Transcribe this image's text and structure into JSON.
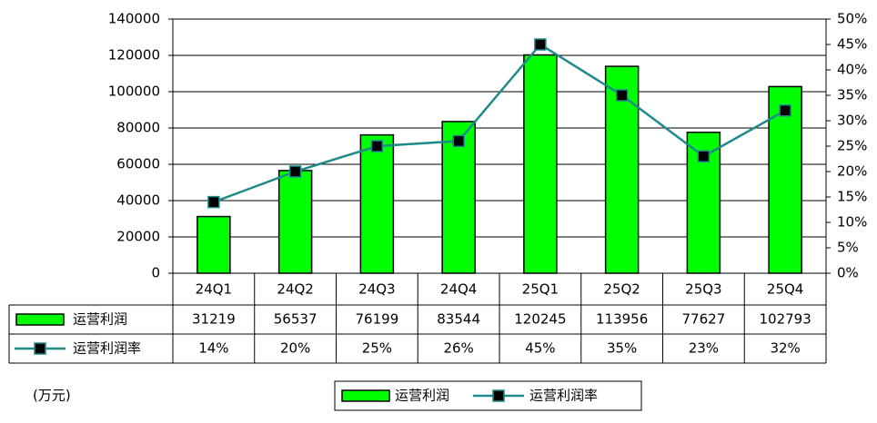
{
  "chart_data": {
    "type": "bar",
    "categories": [
      "24Q1",
      "24Q2",
      "24Q3",
      "24Q4",
      "25Q1",
      "25Q2",
      "25Q3",
      "25Q4"
    ],
    "series": [
      {
        "name": "运营利润",
        "type": "bar",
        "color": "#00ff00",
        "values": [
          31219,
          56537,
          76199,
          83544,
          120245,
          113956,
          77627,
          102793
        ]
      },
      {
        "name": "运营利润率",
        "type": "line",
        "axis": "y2",
        "color": "#1f8a8a",
        "values": [
          14,
          20,
          25,
          26,
          45,
          35,
          23,
          32
        ],
        "value_labels": [
          "14%",
          "20%",
          "25%",
          "26%",
          "45%",
          "35%",
          "23%",
          "32%"
        ]
      }
    ],
    "ylim": [
      0,
      140000
    ],
    "yticks": [
      0,
      20000,
      40000,
      60000,
      80000,
      100000,
      120000,
      140000
    ],
    "y2lim": [
      0,
      50
    ],
    "y2ticks": [
      {
        "value": 0,
        "label": "0%"
      },
      {
        "value": 5,
        "label": "5%"
      },
      {
        "value": 10,
        "label": "10%"
      },
      {
        "value": 15,
        "label": "15%"
      },
      {
        "value": 20,
        "label": "20%"
      },
      {
        "value": 25,
        "label": "25%"
      },
      {
        "value": 30,
        "label": "30%"
      },
      {
        "value": 35,
        "label": "35%"
      },
      {
        "value": 40,
        "label": "40%"
      },
      {
        "value": 45,
        "label": "45%"
      },
      {
        "value": 50,
        "label": "50%"
      }
    ],
    "unit_note": "(万元)",
    "grid": true,
    "legend": "bottom"
  }
}
